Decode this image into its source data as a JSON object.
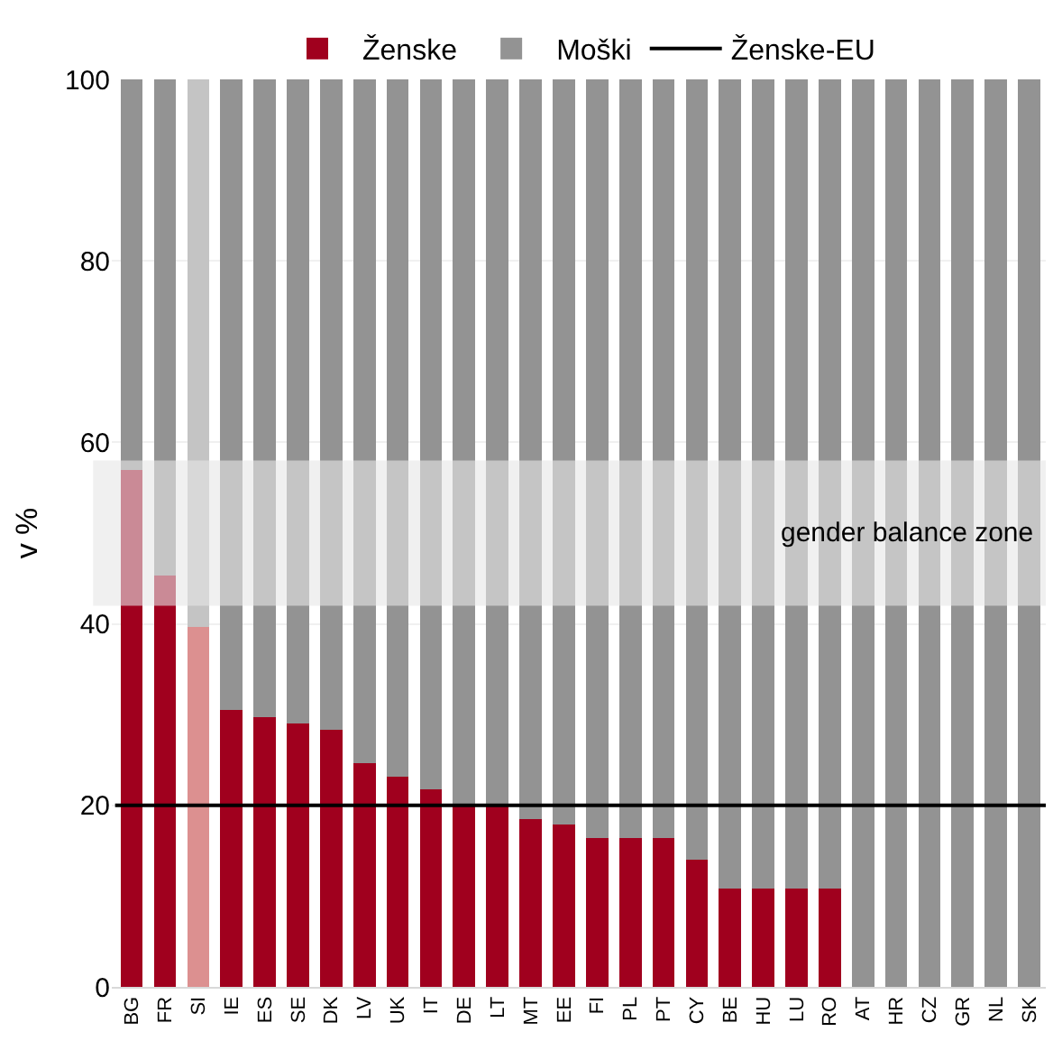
{
  "chart_data": {
    "type": "bar",
    "stacked": true,
    "ylabel": "v %",
    "categories": [
      "BG",
      "FR",
      "SI",
      "IE",
      "ES",
      "SE",
      "DK",
      "LV",
      "UK",
      "IT",
      "DE",
      "LT",
      "MT",
      "EE",
      "FI",
      "PL",
      "PT",
      "CY",
      "BE",
      "HU",
      "LU",
      "RO",
      "AT",
      "HR",
      "CZ",
      "GR",
      "NL",
      "SK"
    ],
    "series": [
      {
        "name": "Ženske",
        "color": "#a0001e",
        "colors": [
          null,
          null,
          "#dc9090",
          null,
          null,
          null,
          null,
          null,
          null,
          null,
          null,
          null,
          null,
          null,
          null,
          null,
          null,
          null,
          null,
          null,
          null,
          null,
          null,
          null,
          null,
          null,
          null,
          null
        ],
        "values": [
          57,
          45.3,
          39.7,
          30.5,
          29.7,
          29,
          28.3,
          24.7,
          23.2,
          21.8,
          20.1,
          20,
          18.5,
          17.9,
          16.4,
          16.4,
          16.4,
          14,
          10.8,
          10.8,
          10.8,
          10.8,
          0,
          0,
          0,
          0,
          0,
          0
        ]
      },
      {
        "name": "Moški",
        "color": "#939393",
        "colors": [
          null,
          null,
          "#c4c4c4",
          null,
          null,
          null,
          null,
          null,
          null,
          null,
          null,
          null,
          null,
          null,
          null,
          null,
          null,
          null,
          null,
          null,
          null,
          null,
          null,
          null,
          null,
          null,
          null,
          null
        ],
        "values": [
          43,
          54.7,
          60.3,
          69.5,
          70.3,
          71,
          71.7,
          75.3,
          76.8,
          78.2,
          79.9,
          80,
          81.5,
          82.1,
          83.6,
          83.6,
          83.6,
          86,
          89.2,
          89.2,
          89.2,
          89.2,
          100,
          100,
          100,
          100,
          100,
          100
        ]
      }
    ],
    "ylim": [
      0,
      100
    ],
    "yticks": [
      0,
      20,
      40,
      60,
      80,
      100
    ],
    "grid": "y",
    "legend": "top",
    "ref_lines": [
      {
        "axis": "y",
        "value": 20,
        "label": "Ženske-EU",
        "color": "#000000",
        "line_style": "solid"
      }
    ],
    "bands": [
      {
        "axis": "y",
        "from": 42,
        "to": 58,
        "label": "gender balance zone",
        "color": "#e6e6e6"
      }
    ]
  }
}
